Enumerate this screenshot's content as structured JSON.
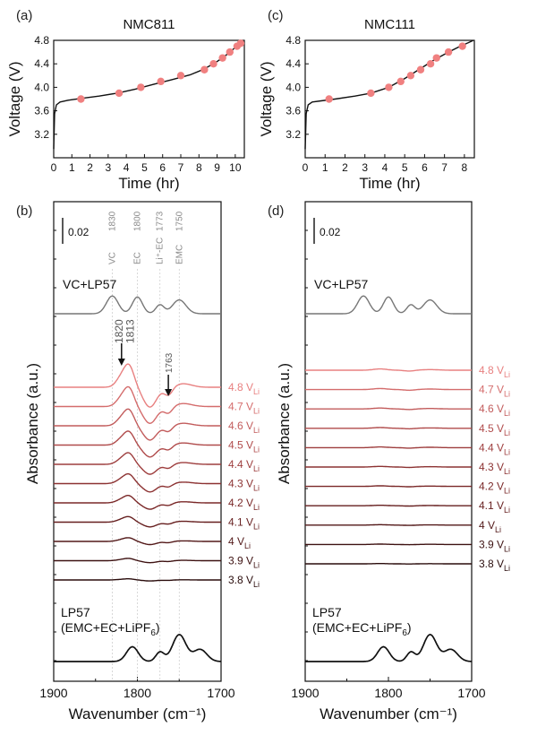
{
  "chart_data": [
    {
      "panel": "(a)",
      "type": "line",
      "title": "NMC811",
      "xlabel": "Time (hr)",
      "ylabel": "Voltage (V)",
      "xlim": [
        0,
        10.5
      ],
      "ylim": [
        2.8,
        4.8
      ],
      "xticks": [
        0,
        1,
        2,
        3,
        4,
        5,
        6,
        7,
        8,
        9,
        10
      ],
      "yticks": [
        3.2,
        3.6,
        4.0,
        4.4,
        4.8
      ],
      "curve": {
        "x": [
          0,
          0.05,
          0.15,
          0.35,
          0.8,
          1.5,
          2.5,
          3.5,
          4.5,
          5.5,
          6.5,
          7.5,
          8.2,
          8.8,
          9.3,
          9.7,
          10.0,
          10.3,
          10.45
        ],
        "y": [
          2.95,
          3.55,
          3.7,
          3.75,
          3.78,
          3.81,
          3.85,
          3.9,
          3.97,
          4.05,
          4.13,
          4.21,
          4.3,
          4.4,
          4.5,
          4.6,
          4.68,
          4.76,
          4.8
        ]
      },
      "markers": {
        "x": [
          1.5,
          3.6,
          4.8,
          5.9,
          7.0,
          8.3,
          8.8,
          9.3,
          9.7,
          10.1,
          10.3
        ],
        "y": [
          3.8,
          3.9,
          4.0,
          4.1,
          4.2,
          4.3,
          4.4,
          4.5,
          4.6,
          4.7,
          4.75
        ]
      },
      "marker_color": "#f08080"
    },
    {
      "panel": "(c)",
      "type": "line",
      "title": "NMC111",
      "xlabel": "Time (hr)",
      "ylabel": "Voltage (V)",
      "xlim": [
        0,
        8.5
      ],
      "ylim": [
        2.8,
        4.8
      ],
      "xticks": [
        0,
        1,
        2,
        3,
        4,
        5,
        6,
        7,
        8
      ],
      "yticks": [
        3.2,
        3.6,
        4.0,
        4.4,
        4.8
      ],
      "curve": {
        "x": [
          0,
          0.05,
          0.15,
          0.35,
          0.8,
          1.5,
          2.5,
          3.3,
          4.2,
          5.0,
          5.8,
          6.5,
          7.2,
          7.8,
          8.2,
          8.45
        ],
        "y": [
          2.95,
          3.55,
          3.7,
          3.75,
          3.77,
          3.8,
          3.85,
          3.9,
          4.0,
          4.15,
          4.32,
          4.47,
          4.6,
          4.7,
          4.76,
          4.8
        ]
      },
      "markers": {
        "x": [
          1.2,
          3.3,
          4.2,
          4.8,
          5.3,
          5.8,
          6.3,
          6.6,
          7.2,
          7.9
        ],
        "y": [
          3.8,
          3.9,
          4.0,
          4.1,
          4.2,
          4.3,
          4.4,
          4.5,
          4.6,
          4.7
        ]
      },
      "marker_color": "#f08080"
    },
    {
      "panel": "(b)",
      "type": "line",
      "xlabel": "Wavenumber (cm⁻¹)",
      "ylabel": "Absorbance (a.u.)",
      "xlim": [
        1900,
        1700
      ],
      "xticks": [
        1900,
        1800,
        1700
      ],
      "scale_bar": "0.02",
      "reference_lines": [
        {
          "label": "VC",
          "value": "1830",
          "x": 1830
        },
        {
          "label": "EC",
          "value": "1800",
          "x": 1800
        },
        {
          "label": "Li⁺-EC",
          "value": "1773",
          "x": 1773
        },
        {
          "label": "EMC",
          "value": "1750",
          "x": 1750
        }
      ],
      "annotations": [
        {
          "text": "1820",
          "x": 1820
        },
        {
          "text": "1813",
          "x": 1813
        },
        {
          "text": "1763",
          "x": 1763
        }
      ],
      "top_spectrum": {
        "name": "VC+LP57"
      },
      "bottom_spectrum": {
        "name": "LP57",
        "name2": "(EMC+EC+LiPF",
        "sub": "6",
        "name2_tail": ")"
      },
      "series": [
        {
          "voltage": "4.8",
          "unit": "V",
          "sub": "Li",
          "color": "#e88080",
          "amp": 1.0
        },
        {
          "voltage": "4.7",
          "unit": "V",
          "sub": "Li",
          "color": "#d46c6c",
          "amp": 0.85
        },
        {
          "voltage": "4.6",
          "unit": "V",
          "sub": "Li",
          "color": "#c25c5c",
          "amp": 0.72
        },
        {
          "voltage": "4.5",
          "unit": "V",
          "sub": "Li",
          "color": "#b04b4b",
          "amp": 0.6
        },
        {
          "voltage": "4.4",
          "unit": "V",
          "sub": "Li",
          "color": "#9e3e3e",
          "amp": 0.5
        },
        {
          "voltage": "4.3",
          "unit": "V",
          "sub": "Li",
          "color": "#8c3232",
          "amp": 0.42
        },
        {
          "voltage": "4.2",
          "unit": "V",
          "sub": "Li",
          "color": "#7a2828",
          "amp": 0.32
        },
        {
          "voltage": "4.1",
          "unit": "V",
          "sub": "Li",
          "color": "#661f1f",
          "amp": 0.24
        },
        {
          "voltage": "4",
          "unit": "V",
          "sub": "Li",
          "color": "#521818",
          "amp": 0.16
        },
        {
          "voltage": "3.9",
          "unit": "V",
          "sub": "Li",
          "color": "#3e1212",
          "amp": 0.1
        },
        {
          "voltage": "3.8",
          "unit": "V",
          "sub": "Li",
          "color": "#2a0c0c",
          "amp": 0.05
        }
      ]
    },
    {
      "panel": "(d)",
      "type": "line",
      "xlabel": "Wavenumber (cm⁻¹)",
      "ylabel": "Absorbance (a.u.)",
      "xlim": [
        1900,
        1700
      ],
      "xticks": [
        1900,
        1800,
        1700
      ],
      "scale_bar": "0.02",
      "top_spectrum": {
        "name": "VC+LP57"
      },
      "bottom_spectrum": {
        "name": "LP57",
        "name2": "(EMC+EC+LiPF",
        "sub": "6",
        "name2_tail": ")"
      },
      "series": [
        {
          "voltage": "4.8",
          "unit": "V",
          "sub": "Li",
          "color": "#e88080",
          "amp": 0.18
        },
        {
          "voltage": "4.7",
          "unit": "V",
          "sub": "Li",
          "color": "#d46c6c",
          "amp": 0.15
        },
        {
          "voltage": "4.6",
          "unit": "V",
          "sub": "Li",
          "color": "#c25c5c",
          "amp": 0.13
        },
        {
          "voltage": "4.5",
          "unit": "V",
          "sub": "Li",
          "color": "#b04b4b",
          "amp": 0.11
        },
        {
          "voltage": "4.4",
          "unit": "V",
          "sub": "Li",
          "color": "#9e3e3e",
          "amp": 0.1
        },
        {
          "voltage": "4.3",
          "unit": "V",
          "sub": "Li",
          "color": "#8c3232",
          "amp": 0.09
        },
        {
          "voltage": "4.2",
          "unit": "V",
          "sub": "Li",
          "color": "#7a2828",
          "amp": 0.08
        },
        {
          "voltage": "4.1",
          "unit": "V",
          "sub": "Li",
          "color": "#661f1f",
          "amp": 0.07
        },
        {
          "voltage": "4",
          "unit": "V",
          "sub": "Li",
          "color": "#521818",
          "amp": 0.06
        },
        {
          "voltage": "3.9",
          "unit": "V",
          "sub": "Li",
          "color": "#3e1212",
          "amp": 0.05
        },
        {
          "voltage": "3.8",
          "unit": "V",
          "sub": "Li",
          "color": "#2a0c0c",
          "amp": 0.04
        }
      ]
    }
  ]
}
